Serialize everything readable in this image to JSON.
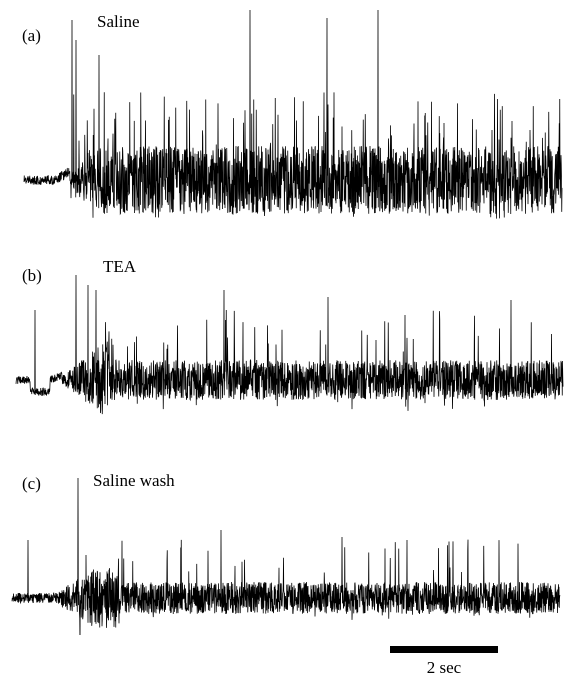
{
  "figure": {
    "panels": [
      {
        "id": "a",
        "label": "(a)",
        "condition": "Saline"
      },
      {
        "id": "b",
        "label": "(b)",
        "condition": "TEA"
      },
      {
        "id": "c",
        "label": "(c)",
        "condition": "Saline wash"
      }
    ],
    "scale_bar": {
      "label": "2 sec"
    },
    "colors": {
      "trace": "#000000",
      "background": "#ffffff"
    }
  }
}
